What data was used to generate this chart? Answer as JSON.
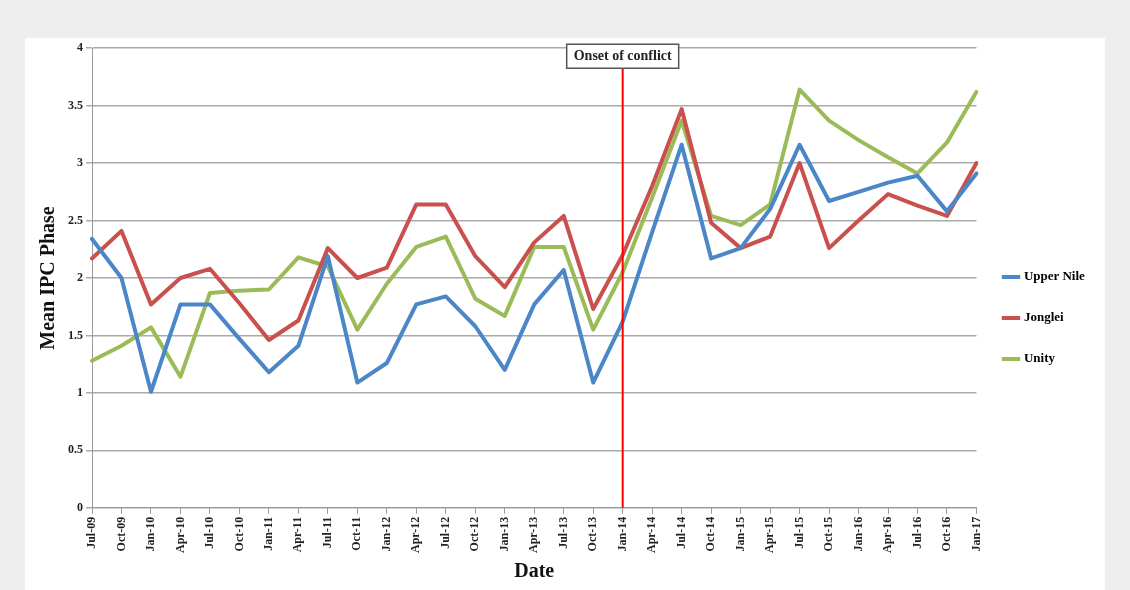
{
  "chart_data": {
    "type": "line",
    "xlabel": "Date",
    "ylabel": "Mean IPC Phase",
    "categories": [
      "Jul-09",
      "Oct-09",
      "Jan-10",
      "Apr-10",
      "Jul-10",
      "Oct-10",
      "Jan-11",
      "Apr-11",
      "Jul-11",
      "Oct-11",
      "Jan-12",
      "Apr-12",
      "Jul-12",
      "Oct-12",
      "Jan-13",
      "Apr-13",
      "Jul-13",
      "Oct-13",
      "Jan-14",
      "Apr-14",
      "Jul-14",
      "Oct-14",
      "Jan-15",
      "Apr-15",
      "Jul-15",
      "Oct-15",
      "Jan-16",
      "Apr-16",
      "Jul-16",
      "Oct-16",
      "Jan-17"
    ],
    "series": [
      {
        "name": "Upper Nile",
        "color": "#4a86c8",
        "values": [
          2.34,
          2.0,
          1.01,
          1.77,
          1.77,
          1.47,
          1.18,
          1.41,
          2.19,
          1.09,
          1.26,
          1.77,
          1.84,
          1.58,
          1.2,
          1.77,
          2.07,
          1.09,
          1.62,
          2.4,
          3.16,
          2.17,
          2.26,
          2.6,
          3.16,
          2.67,
          2.75,
          2.83,
          2.89,
          2.58,
          2.91
        ]
      },
      {
        "name": "Jonglei",
        "color": "#c9504d",
        "values": [
          2.17,
          2.41,
          1.77,
          2.0,
          2.08,
          1.78,
          1.46,
          1.63,
          2.26,
          2.0,
          2.09,
          2.64,
          2.64,
          2.19,
          1.92,
          2.31,
          2.54,
          1.73,
          2.2,
          2.8,
          3.47,
          2.48,
          2.26,
          2.36,
          3.0,
          2.26,
          2.5,
          2.73,
          2.63,
          2.54,
          3.0
        ]
      },
      {
        "name": "Unity",
        "color": "#9bbb59",
        "values": [
          1.28,
          1.41,
          1.57,
          1.14,
          1.87,
          1.89,
          1.9,
          2.18,
          2.1,
          1.55,
          1.95,
          2.27,
          2.36,
          1.82,
          1.67,
          2.27,
          2.27,
          1.55,
          2.05,
          2.7,
          3.37,
          2.54,
          2.46,
          2.64,
          3.64,
          3.37,
          3.2,
          3.05,
          2.91,
          3.18,
          3.62
        ]
      }
    ],
    "ylim": [
      0,
      4
    ],
    "yticks": [
      0,
      0.5,
      1,
      1.5,
      2,
      2.5,
      3,
      3.5,
      4
    ],
    "ref_lines": [
      {
        "axis": "x",
        "value": "Jan-14",
        "label": "Onset of conflict",
        "color": "#ff0000"
      }
    ],
    "grid": "y",
    "legend": "right",
    "marker": "none",
    "line_style": "solid"
  }
}
